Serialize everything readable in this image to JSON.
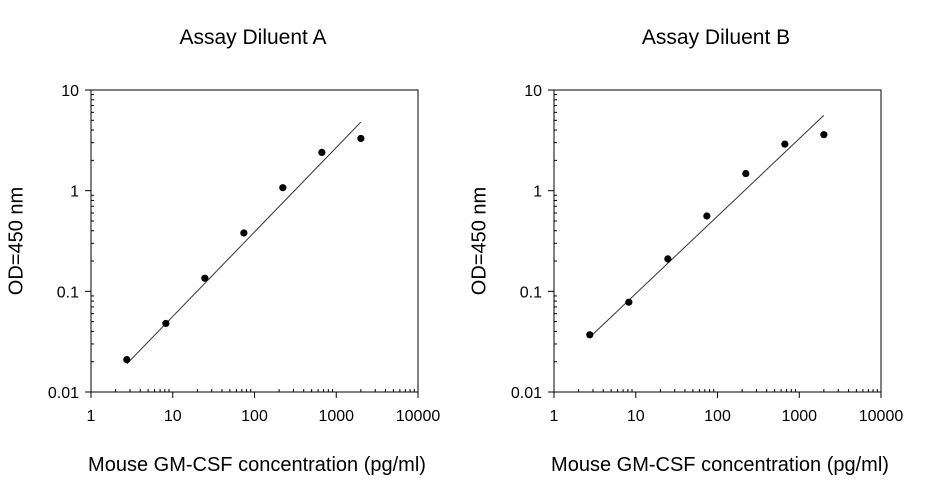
{
  "chart_data": [
    {
      "type": "scatter",
      "title": "Assay Diluent A",
      "xlabel": "Mouse GM-CSF concentration (pg/ml)",
      "ylabel": "OD=450 nm",
      "xscale": "log",
      "yscale": "log",
      "xlim": [
        1,
        10000
      ],
      "ylim": [
        0.01,
        10
      ],
      "xticks": [
        "1",
        "10",
        "100",
        "1000",
        "10000"
      ],
      "yticks": [
        "0.01",
        "0.1",
        "1",
        "10"
      ],
      "grid": false,
      "series": [
        {
          "x": [
            2.74,
            8.23,
            24.7,
            74.1,
            222,
            667,
            2000
          ],
          "y": [
            0.021,
            0.048,
            0.135,
            0.38,
            1.07,
            2.4,
            3.3
          ]
        }
      ],
      "fit_line": {
        "x": [
          2.74,
          2000
        ],
        "y": [
          0.019,
          4.8
        ]
      }
    },
    {
      "type": "scatter",
      "title": "Assay Diluent B",
      "xlabel": "Mouse GM-CSF concentration (pg/ml)",
      "ylabel": "OD=450 nm",
      "xscale": "log",
      "yscale": "log",
      "xlim": [
        1,
        10000
      ],
      "ylim": [
        0.01,
        10
      ],
      "xticks": [
        "1",
        "10",
        "100",
        "1000",
        "10000"
      ],
      "yticks": [
        "0.01",
        "0.1",
        "1",
        "10"
      ],
      "grid": false,
      "series": [
        {
          "x": [
            2.74,
            8.23,
            24.7,
            74.1,
            222,
            667,
            2000
          ],
          "y": [
            0.037,
            0.078,
            0.21,
            0.56,
            1.48,
            2.9,
            3.6
          ]
        }
      ],
      "fit_line": {
        "x": [
          2.74,
          2000
        ],
        "y": [
          0.035,
          5.6
        ]
      }
    }
  ]
}
